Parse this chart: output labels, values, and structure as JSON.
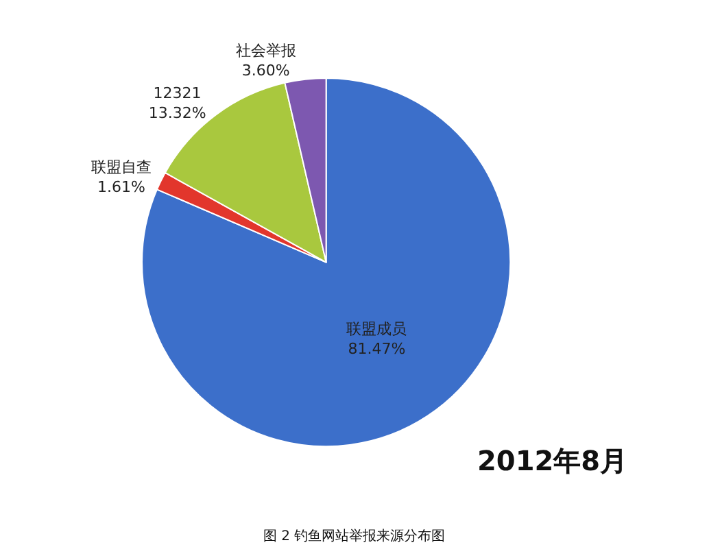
{
  "chart_data": {
    "type": "pie",
    "categories": [
      "联盟成员",
      "联盟自查",
      "12321",
      "社会举报"
    ],
    "values": [
      81.47,
      1.61,
      13.32,
      3.6
    ],
    "value_labels": [
      "81.47%",
      "1.61%",
      "13.32%",
      "3.60%"
    ],
    "colors": [
      "#3c6fca",
      "#e2362c",
      "#a9c83e",
      "#7d58b0"
    ],
    "legend": false,
    "annotations": [
      "2012年8月",
      "图 2 钓鱼网站举报来源分布图"
    ]
  }
}
